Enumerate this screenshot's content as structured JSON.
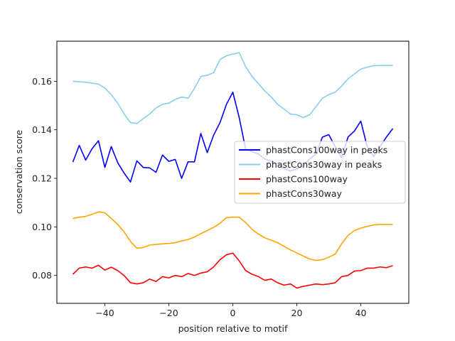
{
  "chart_data": {
    "type": "line",
    "title": "",
    "xlabel": "position relative to motif",
    "ylabel": "conservation score",
    "xlim": [
      -55,
      55
    ],
    "ylim": [
      0.0685,
      0.1765
    ],
    "xticks": [
      -40,
      -20,
      0,
      20,
      40
    ],
    "xtick_labels": [
      "−40",
      "−20",
      "0",
      "20",
      "40"
    ],
    "yticks": [
      0.08,
      0.1,
      0.12,
      0.14,
      0.16
    ],
    "ytick_labels": [
      "0.08",
      "0.10",
      "0.12",
      "0.14",
      "0.16"
    ],
    "grid": false,
    "legend_position": "center-right",
    "x": [
      -50,
      -48,
      -46,
      -44,
      -42,
      -40,
      -38,
      -36,
      -34,
      -32,
      -30,
      -28,
      -26,
      -24,
      -22,
      -20,
      -18,
      -16,
      -14,
      -12,
      -10,
      -8,
      -6,
      -4,
      -2,
      0,
      2,
      4,
      6,
      8,
      10,
      12,
      14,
      16,
      18,
      20,
      22,
      24,
      26,
      28,
      30,
      32,
      34,
      36,
      38,
      40,
      42,
      44,
      46,
      48,
      50
    ],
    "series": [
      {
        "name": "phastCons100way in peaks",
        "color": "#0000ff",
        "values": [
          0.1267,
          0.1336,
          0.1275,
          0.1322,
          0.1355,
          0.1245,
          0.1331,
          0.1265,
          0.1222,
          0.1185,
          0.1272,
          0.1245,
          0.1243,
          0.1225,
          0.1296,
          0.127,
          0.1278,
          0.12,
          0.1268,
          0.1268,
          0.1385,
          0.1306,
          0.1378,
          0.143,
          0.1505,
          0.1555,
          0.145,
          0.132,
          0.131,
          0.13,
          0.128,
          0.127,
          0.126,
          0.124,
          0.123,
          0.124,
          0.125,
          0.128,
          0.13,
          0.137,
          0.138,
          0.133,
          0.1285,
          0.137,
          0.1395,
          0.1436,
          0.133,
          0.129,
          0.133,
          0.137,
          0.1405
        ]
      },
      {
        "name": "phastCons30way in peaks",
        "color": "#87ceeb",
        "values": [
          0.16,
          0.1598,
          0.1596,
          0.1592,
          0.1588,
          0.1572,
          0.1545,
          0.151,
          0.1465,
          0.143,
          0.1426,
          0.1446,
          0.1465,
          0.149,
          0.1505,
          0.151,
          0.1525,
          0.1535,
          0.153,
          0.157,
          0.162,
          0.1625,
          0.1635,
          0.169,
          0.1705,
          0.1712,
          0.1718,
          0.166,
          0.162,
          0.159,
          0.156,
          0.1535,
          0.1505,
          0.1485,
          0.1465,
          0.1462,
          0.145,
          0.1462,
          0.1495,
          0.153,
          0.1545,
          0.1555,
          0.158,
          0.161,
          0.163,
          0.165,
          0.1658,
          0.1664,
          0.1665,
          0.1665,
          0.1665
        ]
      },
      {
        "name": "phastCons100way",
        "color": "#ff0000",
        "values": [
          0.0805,
          0.083,
          0.0835,
          0.083,
          0.0842,
          0.0822,
          0.0834,
          0.082,
          0.08,
          0.077,
          0.0765,
          0.077,
          0.0785,
          0.0775,
          0.0795,
          0.079,
          0.08,
          0.0795,
          0.0808,
          0.08,
          0.081,
          0.0815,
          0.0835,
          0.0865,
          0.0885,
          0.0892,
          0.086,
          0.082,
          0.0805,
          0.0795,
          0.078,
          0.0785,
          0.077,
          0.076,
          0.0765,
          0.0748,
          0.0755,
          0.076,
          0.0765,
          0.0762,
          0.0765,
          0.077,
          0.0795,
          0.08,
          0.0818,
          0.082,
          0.083,
          0.083,
          0.0835,
          0.0832,
          0.084
        ]
      },
      {
        "name": "phastCons30way",
        "color": "#ffa500",
        "values": [
          0.1035,
          0.104,
          0.1043,
          0.1052,
          0.1062,
          0.1058,
          0.1035,
          0.101,
          0.098,
          0.094,
          0.0912,
          0.0915,
          0.0925,
          0.0928,
          0.093,
          0.0932,
          0.0935,
          0.0942,
          0.0948,
          0.0958,
          0.0972,
          0.0985,
          0.0998,
          0.1015,
          0.1038,
          0.104,
          0.104,
          0.1018,
          0.099,
          0.097,
          0.0955,
          0.0945,
          0.0935,
          0.092,
          0.0905,
          0.0893,
          0.088,
          0.0868,
          0.0862,
          0.0865,
          0.0875,
          0.0888,
          0.093,
          0.0965,
          0.0985,
          0.0995,
          0.1002,
          0.1008,
          0.101,
          0.101,
          0.101
        ]
      }
    ]
  }
}
